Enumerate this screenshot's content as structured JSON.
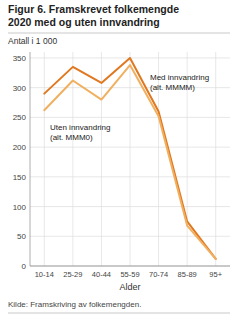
{
  "chart_data": {
    "type": "line",
    "title": "Figur 6. Framskrevet folkemengde",
    "subtitle": "2020 med og uten innvandring",
    "y_label": "Antall i 1 000",
    "x_label": "Alder",
    "annotations": [
      "Kilde: Framskriving av folkemengden."
    ],
    "categories": [
      "10-14",
      "25-29",
      "40-44",
      "55-59",
      "70-74",
      "85-89",
      "95+"
    ],
    "series": [
      {
        "name": "Med innvandring\n(alt. MMMM)",
        "color": "#E07820",
        "values": [
          290,
          335,
          308,
          350,
          260,
          75,
          12
        ]
      },
      {
        "name": "Uten innvandring\n(alt. MMM0)",
        "color": "#F0B060",
        "values": [
          262,
          312,
          280,
          338,
          252,
          68,
          12
        ]
      }
    ],
    "ylim": [
      0,
      360
    ],
    "yticks": [
      0,
      50,
      100,
      150,
      200,
      250,
      300,
      350
    ],
    "grid": true
  }
}
